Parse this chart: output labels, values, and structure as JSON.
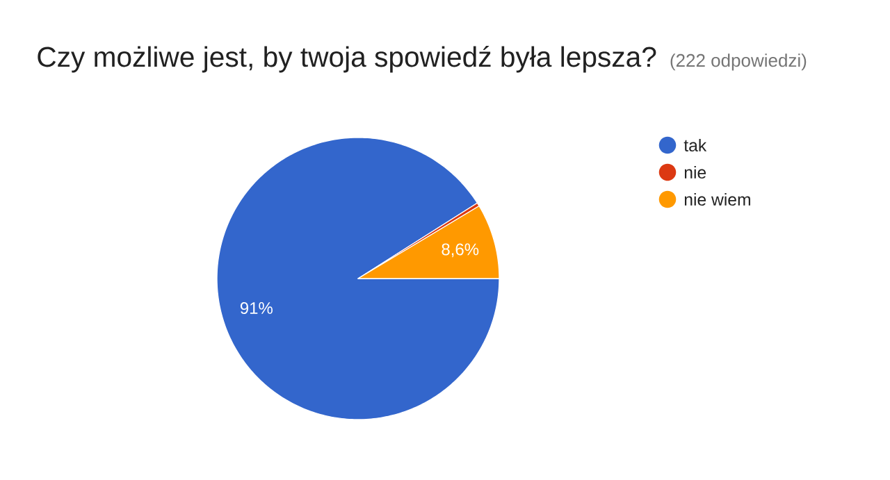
{
  "chart_data": {
    "type": "pie",
    "title": "Czy możliwe jest, by twoja spowiedź była lepsza?",
    "subtitle": "(222 odpowiedzi)",
    "categories": [
      "tak",
      "nie",
      "nie wiem"
    ],
    "values": [
      91,
      0.4,
      8.6
    ],
    "colors": [
      "#3366cc",
      "#dc3912",
      "#ff9900"
    ],
    "value_labels": [
      "91%",
      null,
      "8,6%"
    ],
    "legend": "right"
  }
}
